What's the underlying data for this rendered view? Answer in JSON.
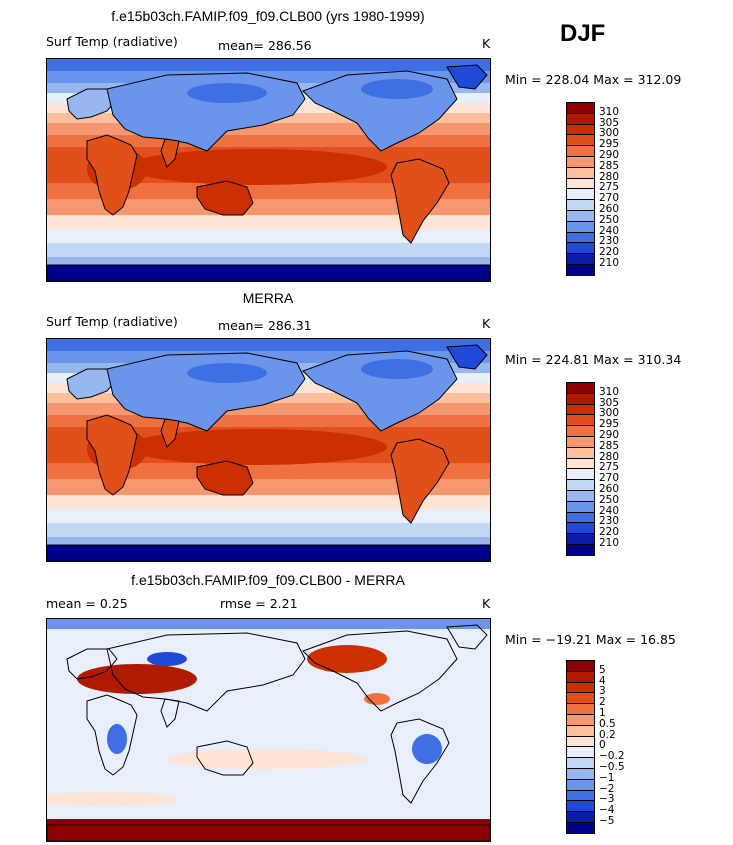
{
  "season": "DJF",
  "panels": [
    {
      "title": "f.e15b03ch.FAMIP.f09_f09.CLB00 (yrs 1980-1999)",
      "left_label": "Surf Temp (radiative)",
      "stat1": "mean= 286.56",
      "stat2": "",
      "units": "K",
      "minmax": "Min = 228.04 Max = 312.09",
      "levels": [
        "310",
        "305",
        "300",
        "295",
        "290",
        "285",
        "280",
        "275",
        "270",
        "260",
        "250",
        "240",
        "230",
        "220",
        "210"
      ],
      "kind": "abs"
    },
    {
      "title": "MERRA",
      "left_label": "Surf Temp (radiative)",
      "stat1": "mean= 286.31",
      "stat2": "",
      "units": "K",
      "minmax": "Min = 224.81 Max = 310.34",
      "levels": [
        "310",
        "305",
        "300",
        "295",
        "290",
        "285",
        "280",
        "275",
        "270",
        "260",
        "250",
        "240",
        "230",
        "220",
        "210"
      ],
      "kind": "abs"
    },
    {
      "title": "f.e15b03ch.FAMIP.f09_f09.CLB00 - MERRA",
      "left_label": "mean =     0.25",
      "stat1": "rmse =     2.21",
      "stat2": "",
      "units": "K",
      "minmax": "Min = −19.21 Max =  16.85",
      "levels": [
        "5",
        "4",
        "3",
        "2",
        "1",
        "0.5",
        "0.2",
        "0",
        "−0.2",
        "−0.5",
        "−1",
        "−2",
        "−3",
        "−4",
        "−5"
      ],
      "kind": "diff"
    }
  ],
  "colors": [
    "#8b0000",
    "#b01a00",
    "#cc3000",
    "#e0501a",
    "#ef7040",
    "#f59770",
    "#fbbf9e",
    "#fde4d4",
    "#e8eefa",
    "#c2d6f5",
    "#97b8ef",
    "#6a95ea",
    "#3f6fe3",
    "#1f49d6",
    "#0a1ca8",
    "#00008b"
  ]
}
